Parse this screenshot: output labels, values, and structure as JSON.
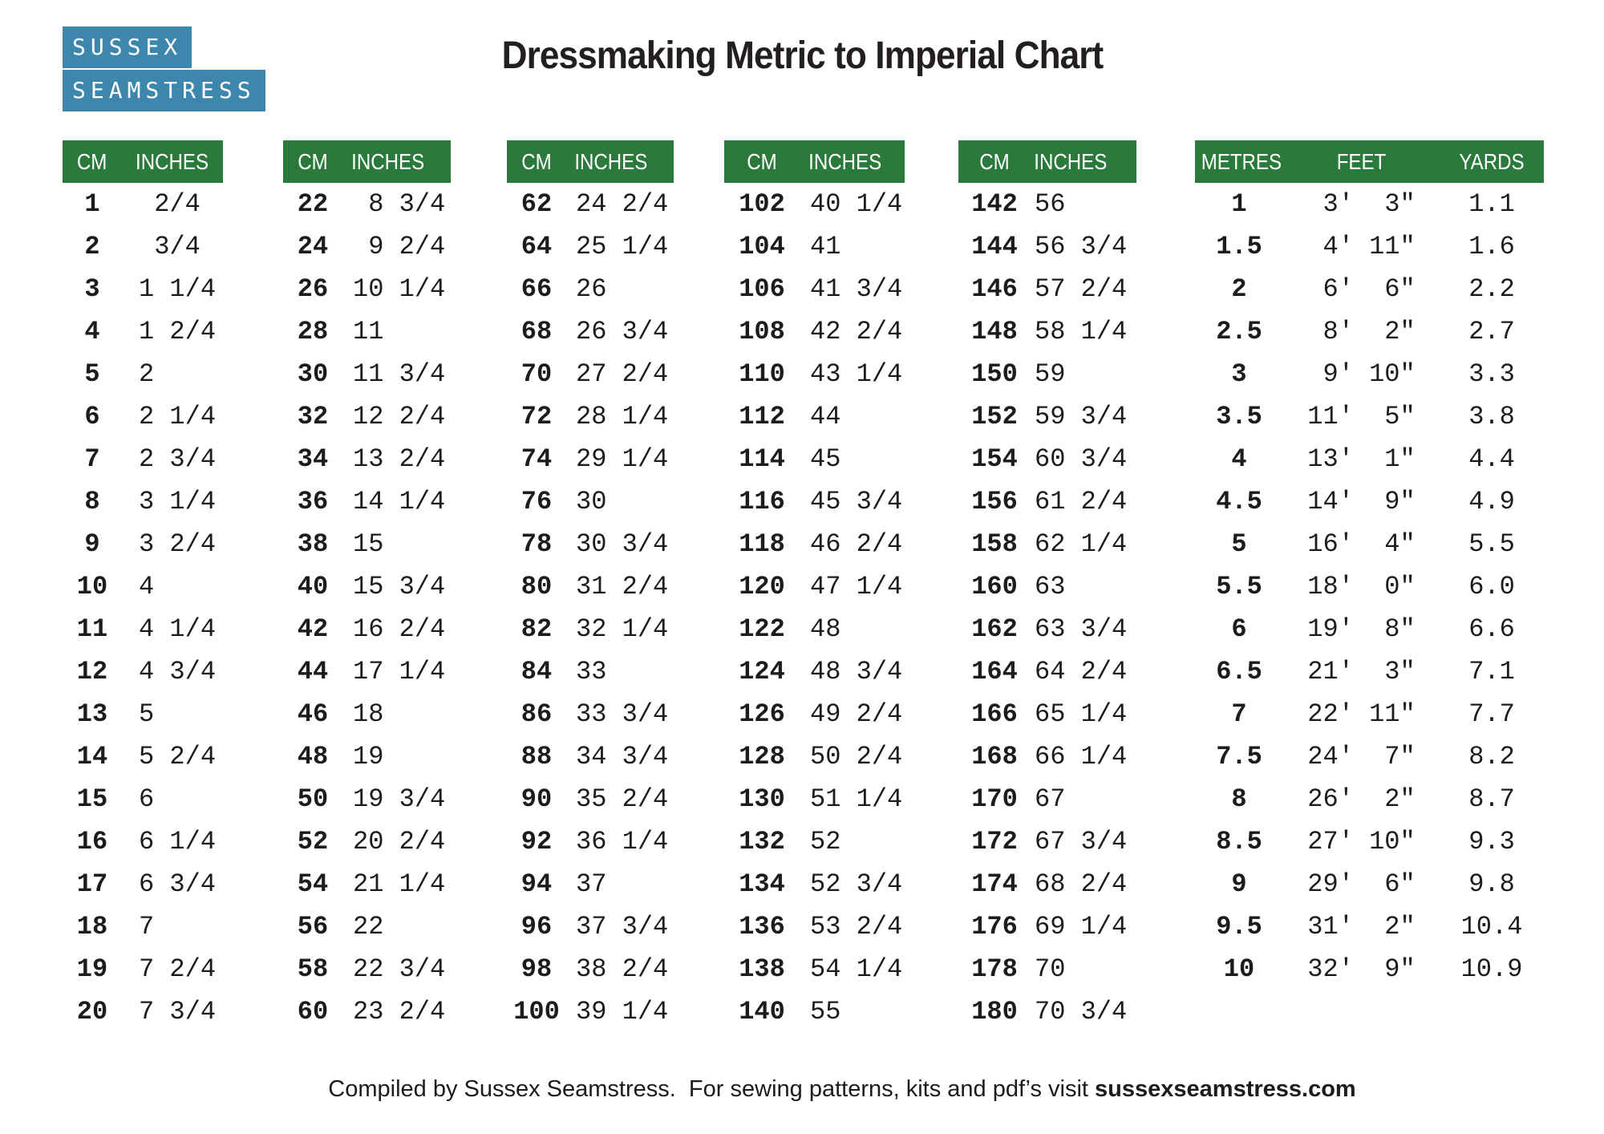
{
  "logo": {
    "line1": "SUSSEX",
    "line2": "SEAMSTRESS"
  },
  "title": "Dressmaking Metric to Imperial Chart",
  "colors": {
    "header_green": "#2a7a3c",
    "logo_blue": "#3d87ac",
    "text": "#1c1c1c"
  },
  "cm_tables": [
    {
      "headers": {
        "cm": "CM",
        "inches": "INCHES"
      },
      "rows": [
        {
          "cm": "1",
          "inches": " 2/4"
        },
        {
          "cm": "2",
          "inches": " 3/4"
        },
        {
          "cm": "3",
          "inches": "1 1/4"
        },
        {
          "cm": "4",
          "inches": "1 2/4"
        },
        {
          "cm": "5",
          "inches": "2"
        },
        {
          "cm": "6",
          "inches": "2 1/4"
        },
        {
          "cm": "7",
          "inches": "2 3/4"
        },
        {
          "cm": "8",
          "inches": "3 1/4"
        },
        {
          "cm": "9",
          "inches": "3 2/4"
        },
        {
          "cm": "10",
          "inches": "4"
        },
        {
          "cm": "11",
          "inches": "4 1/4"
        },
        {
          "cm": "12",
          "inches": "4 3/4"
        },
        {
          "cm": "13",
          "inches": "5"
        },
        {
          "cm": "14",
          "inches": "5 2/4"
        },
        {
          "cm": "15",
          "inches": "6"
        },
        {
          "cm": "16",
          "inches": "6 1/4"
        },
        {
          "cm": "17",
          "inches": "6 3/4"
        },
        {
          "cm": "18",
          "inches": "7"
        },
        {
          "cm": "19",
          "inches": "7 2/4"
        },
        {
          "cm": "20",
          "inches": "7 3/4"
        }
      ]
    },
    {
      "headers": {
        "cm": "CM",
        "inches": "INCHES"
      },
      "rows": [
        {
          "cm": "22",
          "inches": " 8 3/4"
        },
        {
          "cm": "24",
          "inches": " 9 2/4"
        },
        {
          "cm": "26",
          "inches": "10 1/4"
        },
        {
          "cm": "28",
          "inches": "11"
        },
        {
          "cm": "30",
          "inches": "11 3/4"
        },
        {
          "cm": "32",
          "inches": "12 2/4"
        },
        {
          "cm": "34",
          "inches": "13 2/4"
        },
        {
          "cm": "36",
          "inches": "14 1/4"
        },
        {
          "cm": "38",
          "inches": "15"
        },
        {
          "cm": "40",
          "inches": "15 3/4"
        },
        {
          "cm": "42",
          "inches": "16 2/4"
        },
        {
          "cm": "44",
          "inches": "17 1/4"
        },
        {
          "cm": "46",
          "inches": "18"
        },
        {
          "cm": "48",
          "inches": "19"
        },
        {
          "cm": "50",
          "inches": "19 3/4"
        },
        {
          "cm": "52",
          "inches": "20 2/4"
        },
        {
          "cm": "54",
          "inches": "21 1/4"
        },
        {
          "cm": "56",
          "inches": "22"
        },
        {
          "cm": "58",
          "inches": "22 3/4"
        },
        {
          "cm": "60",
          "inches": "23 2/4"
        }
      ]
    },
    {
      "headers": {
        "cm": "CM",
        "inches": "INCHES"
      },
      "rows": [
        {
          "cm": "62",
          "inches": "24 2/4"
        },
        {
          "cm": "64",
          "inches": "25 1/4"
        },
        {
          "cm": "66",
          "inches": "26"
        },
        {
          "cm": "68",
          "inches": "26 3/4"
        },
        {
          "cm": "70",
          "inches": "27 2/4"
        },
        {
          "cm": "72",
          "inches": "28 1/4"
        },
        {
          "cm": "74",
          "inches": "29 1/4"
        },
        {
          "cm": "76",
          "inches": "30"
        },
        {
          "cm": "78",
          "inches": "30 3/4"
        },
        {
          "cm": "80",
          "inches": "31 2/4"
        },
        {
          "cm": "82",
          "inches": "32 1/4"
        },
        {
          "cm": "84",
          "inches": "33"
        },
        {
          "cm": "86",
          "inches": "33 3/4"
        },
        {
          "cm": "88",
          "inches": "34 3/4"
        },
        {
          "cm": "90",
          "inches": "35 2/4"
        },
        {
          "cm": "92",
          "inches": "36 1/4"
        },
        {
          "cm": "94",
          "inches": "37"
        },
        {
          "cm": "96",
          "inches": "37 3/4"
        },
        {
          "cm": "98",
          "inches": "38 2/4"
        },
        {
          "cm": "100",
          "inches": "39 1/4"
        }
      ]
    },
    {
      "headers": {
        "cm": "CM",
        "inches": "INCHES"
      },
      "rows": [
        {
          "cm": "102",
          "inches": "40 1/4"
        },
        {
          "cm": "104",
          "inches": "41"
        },
        {
          "cm": "106",
          "inches": "41 3/4"
        },
        {
          "cm": "108",
          "inches": "42 2/4"
        },
        {
          "cm": "110",
          "inches": "43 1/4"
        },
        {
          "cm": "112",
          "inches": "44"
        },
        {
          "cm": "114",
          "inches": "45"
        },
        {
          "cm": "116",
          "inches": "45 3/4"
        },
        {
          "cm": "118",
          "inches": "46 2/4"
        },
        {
          "cm": "120",
          "inches": "47 1/4"
        },
        {
          "cm": "122",
          "inches": "48"
        },
        {
          "cm": "124",
          "inches": "48 3/4"
        },
        {
          "cm": "126",
          "inches": "49 2/4"
        },
        {
          "cm": "128",
          "inches": "50 2/4"
        },
        {
          "cm": "130",
          "inches": "51 1/4"
        },
        {
          "cm": "132",
          "inches": "52"
        },
        {
          "cm": "134",
          "inches": "52 3/4"
        },
        {
          "cm": "136",
          "inches": "53 2/4"
        },
        {
          "cm": "138",
          "inches": "54 1/4"
        },
        {
          "cm": "140",
          "inches": "55"
        }
      ]
    },
    {
      "headers": {
        "cm": "CM",
        "inches": "INCHES"
      },
      "rows": [
        {
          "cm": "142",
          "inches": "56"
        },
        {
          "cm": "144",
          "inches": "56 3/4"
        },
        {
          "cm": "146",
          "inches": "57 2/4"
        },
        {
          "cm": "148",
          "inches": "58 1/4"
        },
        {
          "cm": "150",
          "inches": "59"
        },
        {
          "cm": "152",
          "inches": "59 3/4"
        },
        {
          "cm": "154",
          "inches": "60 3/4"
        },
        {
          "cm": "156",
          "inches": "61 2/4"
        },
        {
          "cm": "158",
          "inches": "62 1/4"
        },
        {
          "cm": "160",
          "inches": "63"
        },
        {
          "cm": "162",
          "inches": "63 3/4"
        },
        {
          "cm": "164",
          "inches": "64 2/4"
        },
        {
          "cm": "166",
          "inches": "65 1/4"
        },
        {
          "cm": "168",
          "inches": "66 1/4"
        },
        {
          "cm": "170",
          "inches": "67"
        },
        {
          "cm": "172",
          "inches": "67 3/4"
        },
        {
          "cm": "174",
          "inches": "68 2/4"
        },
        {
          "cm": "176",
          "inches": "69 1/4"
        },
        {
          "cm": "178",
          "inches": "70"
        },
        {
          "cm": "180",
          "inches": "70 3/4"
        }
      ]
    }
  ],
  "length_table": {
    "headers": {
      "metres": "METRES",
      "feet": "FEET",
      "yards": "YARDS"
    },
    "rows": [
      {
        "metres": "1",
        "feet": " 3'  3\"",
        "yards": "1.1"
      },
      {
        "metres": "1.5",
        "feet": " 4' 11\"",
        "yards": "1.6"
      },
      {
        "metres": "2",
        "feet": " 6'  6\"",
        "yards": "2.2"
      },
      {
        "metres": "2.5",
        "feet": " 8'  2\"",
        "yards": "2.7"
      },
      {
        "metres": "3",
        "feet": " 9' 10\"",
        "yards": "3.3"
      },
      {
        "metres": "3.5",
        "feet": "11'  5\"",
        "yards": "3.8"
      },
      {
        "metres": "4",
        "feet": "13'  1\"",
        "yards": "4.4"
      },
      {
        "metres": "4.5",
        "feet": "14'  9\"",
        "yards": "4.9"
      },
      {
        "metres": "5",
        "feet": "16'  4\"",
        "yards": "5.5"
      },
      {
        "metres": "5.5",
        "feet": "18'  0\"",
        "yards": "6.0"
      },
      {
        "metres": "6",
        "feet": "19'  8\"",
        "yards": "6.6"
      },
      {
        "metres": "6.5",
        "feet": "21'  3\"",
        "yards": "7.1"
      },
      {
        "metres": "7",
        "feet": "22' 11\"",
        "yards": "7.7"
      },
      {
        "metres": "7.5",
        "feet": "24'  7\"",
        "yards": "8.2"
      },
      {
        "metres": "8",
        "feet": "26'  2\"",
        "yards": "8.7"
      },
      {
        "metres": "8.5",
        "feet": "27' 10\"",
        "yards": "9.3"
      },
      {
        "metres": "9",
        "feet": "29'  6\"",
        "yards": "9.8"
      },
      {
        "metres": "9.5",
        "feet": "31'  2\"",
        "yards": "10.4"
      },
      {
        "metres": "10",
        "feet": "32'  9\"",
        "yards": "10.9"
      }
    ]
  },
  "footer": {
    "prefix": "Compiled by Sussex Seamstress.  For sewing patterns, kits and pdf’s visit ",
    "link": "sussexseamstress.com"
  }
}
